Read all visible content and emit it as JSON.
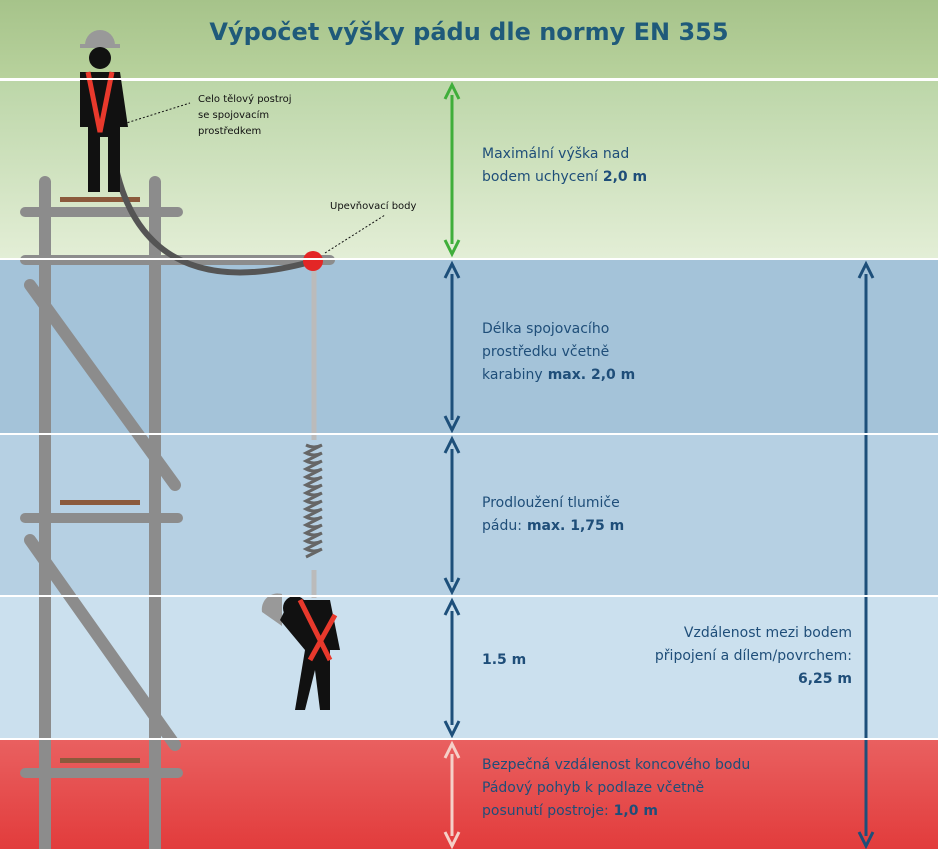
{
  "title": "Výpočet výšky pádu dle normy EN 355",
  "callouts": [
    {
      "lines": [
        "Celo tělový postroj",
        "se spojovacím",
        "prostředkem"
      ]
    },
    {
      "lines": [
        "Upevňovací body"
      ]
    }
  ],
  "zones": [
    {
      "lines": [
        {
          "text": "Maximální výška nad"
        },
        {
          "text": "bodem uchycení",
          "strong": "2,0 m"
        }
      ]
    },
    {
      "lines": [
        {
          "text": "Délka spojovacího"
        },
        {
          "text": "prostředku včetně"
        },
        {
          "text": "karabiny",
          "strong": "max. 2,0 m"
        }
      ]
    },
    {
      "lines": [
        {
          "text": "Prodloužení tlumiče"
        },
        {
          "text": "pádu:",
          "strong": "max. 1,75 m"
        }
      ]
    },
    {
      "lines": [
        {
          "strong": "1.5 m"
        }
      ]
    },
    {
      "lines": [
        {
          "text": "Bezpečná vzdálenost koncového bodu"
        },
        {
          "text": "Pádový pohyb k podlaze včetně"
        },
        {
          "text": "posunutí postroje:",
          "strong": "1,0 m"
        }
      ]
    }
  ],
  "total": {
    "lines": [
      {
        "text": "Vzdálenost mezi bodem"
      },
      {
        "text": "připojení a dílem/povrchem:"
      },
      {
        "strong": "6,25 m"
      }
    ]
  }
}
